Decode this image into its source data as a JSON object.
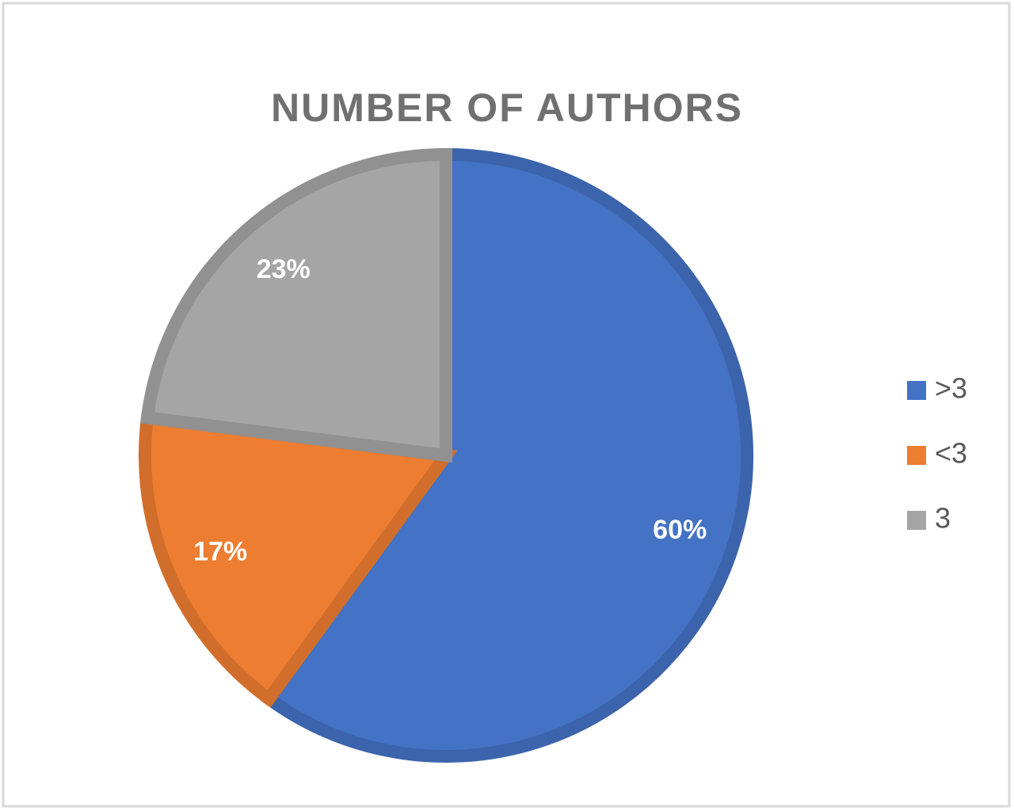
{
  "chart_data": {
    "type": "pie",
    "title": "NUMBER OF AUTHORS",
    "categories": [
      ">3",
      "<3",
      "3"
    ],
    "values": [
      60,
      17,
      23
    ],
    "value_labels": [
      "60%",
      "17%",
      "23%"
    ],
    "colors": [
      "#4472c4",
      "#ed7d31",
      "#a5a5a5"
    ],
    "legend": "right"
  }
}
